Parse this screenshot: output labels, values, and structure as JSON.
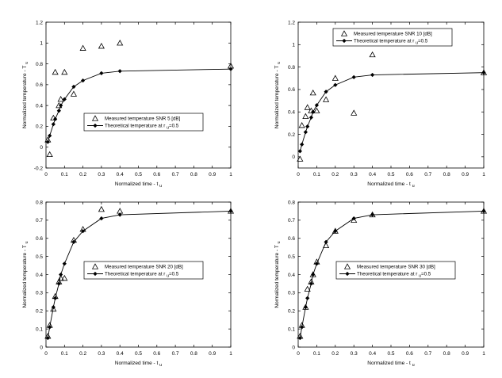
{
  "figure": {
    "xlabel_main": "Normalized time - t",
    "xlabel_sub": "u",
    "ylabel_main": "Normalized temperature - T",
    "ylabel_sub": "u",
    "theory_label_main": "Theoretical temperature at r",
    "theory_label_sub": "u",
    "theory_label_tail": "=0.5",
    "colors": {
      "axes": "#000000",
      "line": "#000000",
      "background": "#ffffff"
    }
  },
  "chart_data": [
    {
      "type": "scatter",
      "panel": "top-left",
      "xlim": [
        0,
        1
      ],
      "ylim": [
        -0.2,
        1.2
      ],
      "xticks": [
        "0",
        "0.1",
        "0.2",
        "0.3",
        "0.4",
        "0.5",
        "0.6",
        "0.7",
        "0.8",
        "0.9",
        "1"
      ],
      "yticks": [
        "-0.2",
        "0",
        "0.2",
        "0.4",
        "0.6",
        "0.8",
        "1",
        "1.2"
      ],
      "ytick_values": [
        -0.2,
        0,
        0.2,
        0.4,
        0.6,
        0.8,
        1.0,
        1.2
      ],
      "xlabel": "Normalized time - t u",
      "ylabel": "Normalized temperature - T u",
      "grid": false,
      "legend_position": "center-right",
      "series": [
        {
          "name": "Measured temperature SNR 5 [dB]",
          "marker": "triangle",
          "x": [
            0.01,
            0.02,
            0.04,
            0.05,
            0.07,
            0.08,
            0.1,
            0.15,
            0.2,
            0.3,
            0.4,
            1.0
          ],
          "y": [
            0.07,
            -0.07,
            0.28,
            0.72,
            0.4,
            0.46,
            0.72,
            0.51,
            0.95,
            0.97,
            1.0,
            0.78
          ]
        },
        {
          "name": "Theoretical temperature at r u =0.5",
          "marker": "diamond",
          "line": true,
          "x": [
            0.01,
            0.02,
            0.04,
            0.05,
            0.07,
            0.08,
            0.1,
            0.15,
            0.2,
            0.3,
            0.4,
            1.0
          ],
          "y": [
            0.05,
            0.11,
            0.22,
            0.27,
            0.35,
            0.4,
            0.46,
            0.58,
            0.64,
            0.71,
            0.73,
            0.75
          ]
        }
      ]
    },
    {
      "type": "scatter",
      "panel": "top-right",
      "xlim": [
        0,
        1
      ],
      "ylim": [
        -0.1,
        1.2
      ],
      "xticks": [
        "0",
        "0.1",
        "0.2",
        "0.3",
        "0.4",
        "0.5",
        "0.6",
        "0.7",
        "0.8",
        "0.9",
        "1"
      ],
      "yticks": [
        "0",
        "0.2",
        "0.4",
        "0.6",
        "0.8",
        "1",
        "1.2"
      ],
      "ytick_values": [
        0,
        0.2,
        0.4,
        0.6,
        0.8,
        1.0,
        1.2
      ],
      "xlabel": "Normalized time - t u",
      "ylabel": "Normalized temperature - T u",
      "grid": false,
      "legend_position": "top-right",
      "series": [
        {
          "name": "Measured temperature SNR 10 [dB]",
          "marker": "triangle",
          "x": [
            0.01,
            0.02,
            0.04,
            0.05,
            0.07,
            0.08,
            0.1,
            0.15,
            0.2,
            0.3,
            0.4,
            1.0
          ],
          "y": [
            -0.02,
            0.28,
            0.36,
            0.44,
            0.41,
            0.57,
            0.41,
            0.51,
            0.7,
            0.39,
            0.91,
            0.75
          ]
        },
        {
          "name": "Theoretical temperature at r u =0.5",
          "marker": "diamond",
          "line": true,
          "x": [
            0.01,
            0.02,
            0.04,
            0.05,
            0.07,
            0.08,
            0.1,
            0.15,
            0.2,
            0.3,
            0.4,
            1.0
          ],
          "y": [
            0.05,
            0.11,
            0.22,
            0.27,
            0.35,
            0.4,
            0.46,
            0.58,
            0.64,
            0.71,
            0.73,
            0.75
          ]
        }
      ]
    },
    {
      "type": "scatter",
      "panel": "bottom-left",
      "xlim": [
        0,
        1
      ],
      "ylim": [
        0,
        0.8
      ],
      "xticks": [
        "0",
        "0.1",
        "0.2",
        "0.3",
        "0.4",
        "0.5",
        "0.6",
        "0.7",
        "0.8",
        "0.9",
        "1"
      ],
      "yticks": [
        "0",
        "0.1",
        "0.2",
        "0.3",
        "0.4",
        "0.5",
        "0.6",
        "0.7",
        "0.8"
      ],
      "ytick_values": [
        0,
        0.1,
        0.2,
        0.3,
        0.4,
        0.5,
        0.6,
        0.7,
        0.8
      ],
      "xlabel": "Normalized time - t u",
      "ylabel": "Normalized temperature - T u",
      "grid": false,
      "legend_position": "center-right",
      "series": [
        {
          "name": "Measured temperature SNR 20 [dB]",
          "marker": "triangle",
          "x": [
            0.01,
            0.02,
            0.04,
            0.05,
            0.07,
            0.08,
            0.1,
            0.15,
            0.2,
            0.3,
            0.4,
            1.0
          ],
          "y": [
            0.06,
            0.12,
            0.21,
            0.28,
            0.36,
            0.38,
            0.38,
            0.59,
            0.65,
            0.76,
            0.75,
            0.75
          ]
        },
        {
          "name": "Theoretical temperature at r u =0.5",
          "marker": "diamond",
          "line": true,
          "x": [
            0.01,
            0.02,
            0.04,
            0.05,
            0.07,
            0.08,
            0.1,
            0.15,
            0.2,
            0.3,
            0.4,
            1.0
          ],
          "y": [
            0.05,
            0.11,
            0.22,
            0.27,
            0.35,
            0.4,
            0.46,
            0.58,
            0.64,
            0.71,
            0.73,
            0.75
          ]
        }
      ]
    },
    {
      "type": "scatter",
      "panel": "bottom-right",
      "xlim": [
        0,
        1
      ],
      "ylim": [
        0,
        0.8
      ],
      "xticks": [
        "0",
        "0.1",
        "0.2",
        "0.3",
        "0.4",
        "0.5",
        "0.6",
        "0.7",
        "0.8",
        "0.9",
        "1"
      ],
      "yticks": [
        "0",
        "0.1",
        "0.2",
        "0.3",
        "0.4",
        "0.5",
        "0.6",
        "0.7",
        "0.8"
      ],
      "ytick_values": [
        0,
        0.1,
        0.2,
        0.3,
        0.4,
        0.5,
        0.6,
        0.7,
        0.8
      ],
      "xlabel": "Normalized time - t u",
      "ylabel": "Normalized temperature - T u",
      "grid": false,
      "legend_position": "center-right",
      "series": [
        {
          "name": "Measured temperature SNR 30 [dB]",
          "marker": "triangle",
          "x": [
            0.01,
            0.02,
            0.04,
            0.05,
            0.07,
            0.08,
            0.1,
            0.15,
            0.2,
            0.3,
            0.4,
            1.0
          ],
          "y": [
            0.06,
            0.12,
            0.22,
            0.32,
            0.36,
            0.4,
            0.47,
            0.56,
            0.64,
            0.7,
            0.73,
            0.75
          ]
        },
        {
          "name": "Theoretical temperature at r u =0.5",
          "marker": "diamond",
          "line": true,
          "x": [
            0.01,
            0.02,
            0.04,
            0.05,
            0.07,
            0.08,
            0.1,
            0.15,
            0.2,
            0.3,
            0.4,
            1.0
          ],
          "y": [
            0.05,
            0.11,
            0.22,
            0.27,
            0.35,
            0.4,
            0.46,
            0.58,
            0.64,
            0.71,
            0.73,
            0.75
          ]
        }
      ]
    }
  ]
}
